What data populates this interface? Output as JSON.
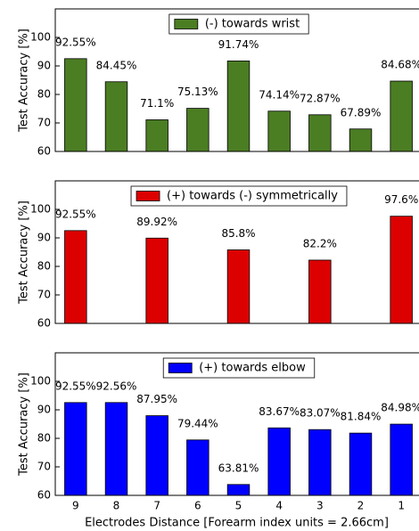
{
  "chart_data": [
    {
      "type": "bar",
      "ylabel": "Test Accuracy [%]",
      "ylim": [
        60,
        110
      ],
      "yticks": [
        60,
        70,
        80,
        90,
        100
      ],
      "legend": "upper center",
      "series": [
        {
          "name": "(-) towards wrist",
          "color": "#4b7d23",
          "values": [
            92.55,
            84.45,
            71.1,
            75.13,
            91.74,
            74.14,
            72.87,
            67.89,
            84.68
          ],
          "value_labels": [
            "92.55%",
            "84.45%",
            "71.1%",
            "75.13%",
            "91.74%",
            "74.14%",
            "72.87%",
            "67.89%",
            "84.68%"
          ]
        }
      ]
    },
    {
      "type": "bar",
      "ylabel": "Test Accuracy [%]",
      "ylim": [
        60,
        110
      ],
      "yticks": [
        60,
        70,
        80,
        90,
        100
      ],
      "legend": "upper center",
      "series": [
        {
          "name": "(+) towards (-) symmetrically",
          "color": "#dd0000",
          "values": [
            92.55,
            null,
            89.92,
            null,
            85.8,
            null,
            82.2,
            null,
            97.6
          ],
          "value_labels": [
            "92.55%",
            null,
            "89.92%",
            null,
            "85.8%",
            null,
            "82.2%",
            null,
            "97.6%"
          ]
        }
      ]
    },
    {
      "type": "bar",
      "ylabel": "Test Accuracy [%]",
      "xlabel": "Electrodes Distance [Forearm index units = 2.66cm]",
      "categories": [
        "9",
        "8",
        "7",
        "6",
        "5",
        "4",
        "3",
        "2",
        "1"
      ],
      "ylim": [
        60,
        110
      ],
      "yticks": [
        60,
        70,
        80,
        90,
        100
      ],
      "legend": "upper center",
      "series": [
        {
          "name": "(+) towards elbow",
          "color": "#0000ff",
          "values": [
            92.55,
            92.56,
            87.95,
            79.44,
            63.81,
            83.67,
            83.07,
            81.84,
            84.98
          ],
          "value_labels": [
            "92.55%",
            "92.56%",
            "87.95%",
            "79.44%",
            "63.81%",
            "83.67%",
            "83.07%",
            "81.84%",
            "84.98%"
          ]
        }
      ]
    }
  ]
}
